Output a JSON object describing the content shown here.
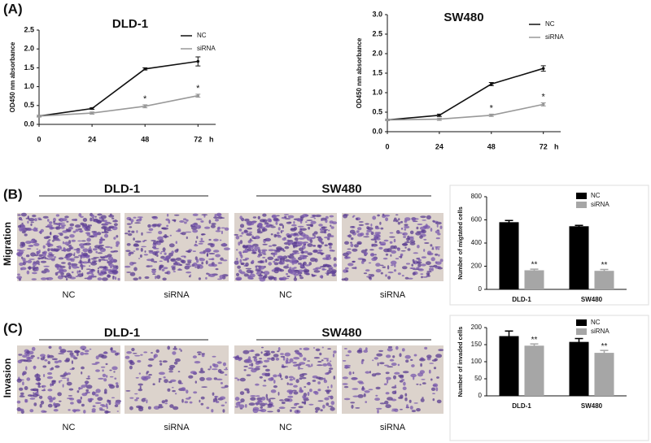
{
  "panel_labels": [
    "(A)",
    "(B)",
    "(C)"
  ],
  "image_panels": [
    {
      "row_label": "Migration",
      "groups": [
        {
          "title": "DLD-1",
          "captions": [
            "NC",
            "siRNA"
          ]
        },
        {
          "title": "SW480",
          "captions": [
            "NC",
            "siRNA"
          ]
        }
      ]
    },
    {
      "row_label": "Invasion",
      "groups": [
        {
          "title": "DLD-1",
          "captions": [
            "NC",
            "siRNA"
          ]
        },
        {
          "title": "SW480",
          "captions": [
            "NC",
            "siRNA"
          ]
        }
      ]
    }
  ],
  "chart_data": [
    {
      "type": "line",
      "title": "DLD-1",
      "y_label": "OD450 nm absorbance",
      "x_label": "h",
      "x": [
        0,
        24,
        48,
        72
      ],
      "xlim": [
        0,
        80
      ],
      "xticks": [
        0,
        24,
        48,
        72
      ],
      "ylim": [
        0,
        2.5
      ],
      "yticks": [
        {
          "value": 0,
          "label": "0.0"
        },
        0.5,
        {
          "value": 1,
          "label": "1.0"
        },
        1.5,
        {
          "value": 2,
          "label": "2.0"
        },
        2.5
      ],
      "legend": "top-right",
      "series": [
        {
          "name": "NC",
          "color": "#111111",
          "values": [
            0.22,
            0.42,
            1.47,
            1.67
          ],
          "errors": [
            0.02,
            0.02,
            0.03,
            0.12
          ]
        },
        {
          "name": "siRNA",
          "color": "#999999",
          "values": [
            0.22,
            0.3,
            0.48,
            0.76
          ],
          "errors": [
            0.02,
            0.03,
            0.04,
            0.04
          ],
          "significance": [
            null,
            null,
            "*",
            "*"
          ]
        }
      ]
    },
    {
      "type": "line",
      "title": "SW480",
      "y_label": "OD450 nm absorbance",
      "x_label": "h",
      "x": [
        0,
        24,
        48,
        72
      ],
      "xlim": [
        0,
        80
      ],
      "xticks": [
        0,
        24,
        48,
        72
      ],
      "ylim": [
        0,
        3
      ],
      "yticks": [
        {
          "value": 0,
          "label": "0.0"
        },
        0.5,
        {
          "value": 1,
          "label": "1.0"
        },
        1.5,
        {
          "value": 2,
          "label": "2.0"
        },
        2.5,
        {
          "value": 3,
          "label": "3.0"
        }
      ],
      "legend": "top-right",
      "series": [
        {
          "name": "NC",
          "color": "#111111",
          "values": [
            0.3,
            0.42,
            1.22,
            1.62
          ],
          "errors": [
            0.02,
            0.03,
            0.04,
            0.07
          ]
        },
        {
          "name": "siRNA",
          "color": "#999999",
          "values": [
            0.3,
            0.32,
            0.42,
            0.7
          ],
          "errors": [
            0.02,
            0.03,
            0.03,
            0.04
          ],
          "significance": [
            null,
            null,
            "*",
            "*"
          ]
        }
      ]
    },
    {
      "type": "bar",
      "y_label": "Number of migtated cells",
      "categories": [
        "DLD-1",
        "SW480"
      ],
      "ylim": [
        0,
        800
      ],
      "yticks": [
        0,
        200,
        400,
        600,
        800
      ],
      "legend": "top-right",
      "series": [
        {
          "name": "NC",
          "color": "#000000",
          "values": [
            580,
            545
          ],
          "errors": [
            15,
            8
          ]
        },
        {
          "name": "siRNA",
          "color": "#a6a6a6",
          "values": [
            165,
            160
          ],
          "errors": [
            10,
            12
          ],
          "significance": [
            "**",
            "**"
          ]
        }
      ]
    },
    {
      "type": "bar",
      "y_label": "Number of invaded cells",
      "categories": [
        "DLD-1",
        "SW480"
      ],
      "ylim": [
        0,
        200
      ],
      "yticks": [
        0,
        50,
        100,
        150,
        200
      ],
      "legend": "top-right",
      "series": [
        {
          "name": "NC",
          "color": "#000000",
          "values": [
            175,
            158
          ],
          "errors": [
            15,
            10
          ]
        },
        {
          "name": "siRNA",
          "color": "#a6a6a6",
          "values": [
            147,
            126
          ],
          "errors": [
            5,
            7
          ],
          "significance": [
            "**",
            "**"
          ]
        }
      ]
    }
  ]
}
